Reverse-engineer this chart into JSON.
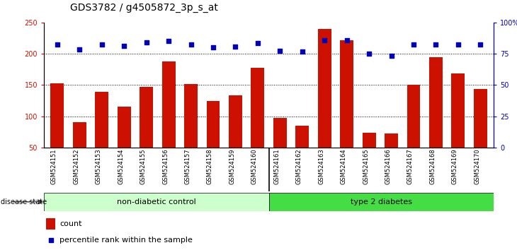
{
  "title": "GDS3782 / g4505872_3p_s_at",
  "samples": [
    "GSM524151",
    "GSM524152",
    "GSM524153",
    "GSM524154",
    "GSM524155",
    "GSM524156",
    "GSM524157",
    "GSM524158",
    "GSM524159",
    "GSM524160",
    "GSM524161",
    "GSM524162",
    "GSM524163",
    "GSM524164",
    "GSM524165",
    "GSM524166",
    "GSM524167",
    "GSM524168",
    "GSM524169",
    "GSM524170"
  ],
  "counts": [
    153,
    90,
    139,
    115,
    147,
    188,
    152,
    124,
    133,
    177,
    97,
    85,
    240,
    222,
    74,
    73,
    150,
    195,
    168,
    144
  ],
  "percentile_ranks_left_scale": [
    215,
    207,
    215,
    212,
    218,
    220,
    215,
    210,
    211,
    217,
    205,
    204,
    222,
    222,
    200,
    197,
    215,
    215,
    215,
    215
  ],
  "group_labels": [
    "non-diabetic control",
    "type 2 diabetes"
  ],
  "group_split": 10,
  "bar_color": "#cc1100",
  "dot_color": "#0000bb",
  "background_color": "#ffffff",
  "label_bg_color": "#cccccc",
  "group1_color": "#ccffcc",
  "group2_color": "#44dd44",
  "ylim_left": [
    50,
    250
  ],
  "ylim_right": [
    0,
    100
  ],
  "yticks_left": [
    50,
    100,
    150,
    200,
    250
  ],
  "ytick_labels_left": [
    "50",
    "100",
    "150",
    "200",
    "250"
  ],
  "yticks_right": [
    0,
    25,
    50,
    75,
    100
  ],
  "ytick_labels_right": [
    "0",
    "25",
    "50",
    "75",
    "100%"
  ],
  "hlines": [
    100,
    150,
    200
  ],
  "legend_count_label": "count",
  "legend_pct_label": "percentile rank within the sample",
  "disease_state_label": "disease state",
  "title_fontsize": 10,
  "tick_fontsize": 7,
  "label_fontsize": 6,
  "group_fontsize": 8
}
